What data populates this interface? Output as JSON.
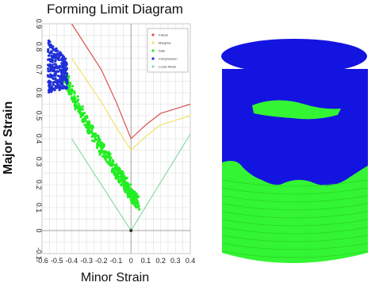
{
  "chart_data": {
    "type": "scatter",
    "title": "Forming Limit Diagram",
    "xlabel": "Minor Strain",
    "ylabel": "Major Strain",
    "xlim": [
      -0.6,
      0.4
    ],
    "ylim": [
      -0.1,
      0.9
    ],
    "x_ticks": [
      "-0.6",
      "-0.5",
      "-0.4",
      "-0.3",
      "-0.2",
      "-0.1",
      "0",
      "0.1",
      "0.2",
      "0.3",
      "0.4"
    ],
    "y_ticks": [
      "-0.1",
      "0",
      "0.1",
      "0.2",
      "0.3",
      "0.4",
      "0.5",
      "0.6",
      "0.7",
      "0.8",
      "0.9"
    ],
    "grid": true,
    "legend_position": "top-right",
    "legend": [
      "Failure",
      "Marginal",
      "Safe",
      "Compression",
      "Loose Metal"
    ],
    "colors": {
      "failure": "#d9534f",
      "marginal": "#f0e26a",
      "safe": "#22ee22",
      "compression": "#1f2fd8",
      "loose_metal": "#8ed8a8"
    },
    "curves": {
      "failure": {
        "x": [
          -0.4,
          -0.2,
          -0.1,
          0,
          0.1,
          0.2,
          0.3,
          0.4
        ],
        "y": [
          0.9,
          0.7,
          0.56,
          0.4,
          0.46,
          0.51,
          0.53,
          0.55
        ]
      },
      "marginal": {
        "x": [
          -0.4,
          -0.2,
          -0.1,
          0,
          0.1,
          0.2,
          0.3,
          0.4
        ],
        "y": [
          0.75,
          0.56,
          0.45,
          0.35,
          0.41,
          0.46,
          0.48,
          0.5
        ]
      },
      "loose_metal": {
        "x": [
          -0.4,
          0,
          0.4
        ],
        "y": [
          0.4,
          0.0,
          0.42
        ]
      }
    },
    "scatter": {
      "compression": {
        "x_range": [
          -0.56,
          -0.43
        ],
        "y_range": [
          0.56,
          0.84
        ]
      },
      "safe": {
        "x": [
          -0.45,
          -0.4,
          -0.3,
          -0.2,
          -0.1,
          -0.05,
          0,
          0.05
        ],
        "y": [
          0.68,
          0.6,
          0.47,
          0.36,
          0.26,
          0.22,
          0.16,
          0.12
        ]
      }
    }
  },
  "photo": {
    "blue_color": "#1414e0",
    "green_color": "#33f533"
  }
}
